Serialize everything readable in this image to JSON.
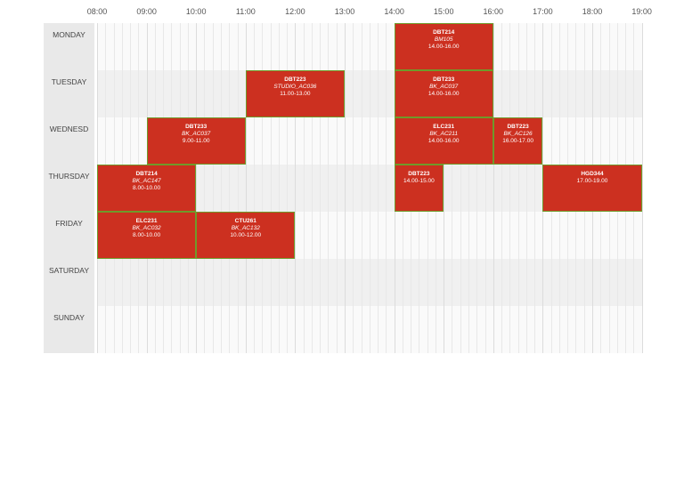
{
  "hours": [
    "08:00",
    "09:00",
    "10:00",
    "11:00",
    "12:00",
    "13:00",
    "14:00",
    "15:00",
    "16:00",
    "17:00",
    "18:00",
    "19:00"
  ],
  "days": [
    {
      "name": "MONDAY",
      "events": [
        {
          "code": "DBT214",
          "room": "BM105",
          "time": "14.00-16.00",
          "start": 14,
          "end": 16
        }
      ]
    },
    {
      "name": "TUESDAY",
      "events": [
        {
          "code": "DBT223",
          "room": "STUDIO_AC036",
          "time": "11.00-13.00",
          "start": 11,
          "end": 13
        },
        {
          "code": "DBT233",
          "room": "BK_AC037",
          "time": "14.00-16.00",
          "start": 14,
          "end": 16
        }
      ]
    },
    {
      "name": "WEDNESD",
      "events": [
        {
          "code": "DBT233",
          "room": "BK_AC037",
          "time": "9.00-11.00",
          "start": 9,
          "end": 11
        },
        {
          "code": "ELC231",
          "room": "BK_AC211",
          "time": "14.00-16.00",
          "start": 14,
          "end": 16
        },
        {
          "code": "DBT223",
          "room": "BK_AC126",
          "time": "16.00-17.00",
          "start": 16,
          "end": 17
        }
      ]
    },
    {
      "name": "THURSDAY",
      "events": [
        {
          "code": "DBT214",
          "room": "BK_AC147",
          "time": "8.00-10.00",
          "start": 8,
          "end": 10
        },
        {
          "code": "DBT223",
          "room": "",
          "time": "14.00-15.00",
          "start": 14,
          "end": 15
        },
        {
          "code": "HGD344",
          "room": "",
          "time": "17.00-19.00",
          "start": 17,
          "end": 19
        }
      ]
    },
    {
      "name": "FRIDAY",
      "events": [
        {
          "code": "ELC231",
          "room": "BK_AC032",
          "time": "8.00-10.00",
          "start": 8,
          "end": 10
        },
        {
          "code": "CTU261",
          "room": "BK_AC132",
          "time": "10.00-12.00",
          "start": 10,
          "end": 12
        }
      ]
    },
    {
      "name": "SATURDAY",
      "events": []
    },
    {
      "name": "SUNDAY",
      "events": []
    }
  ],
  "colors": {
    "event_fill": "#cc3020",
    "event_border": "#6f9a2a"
  }
}
